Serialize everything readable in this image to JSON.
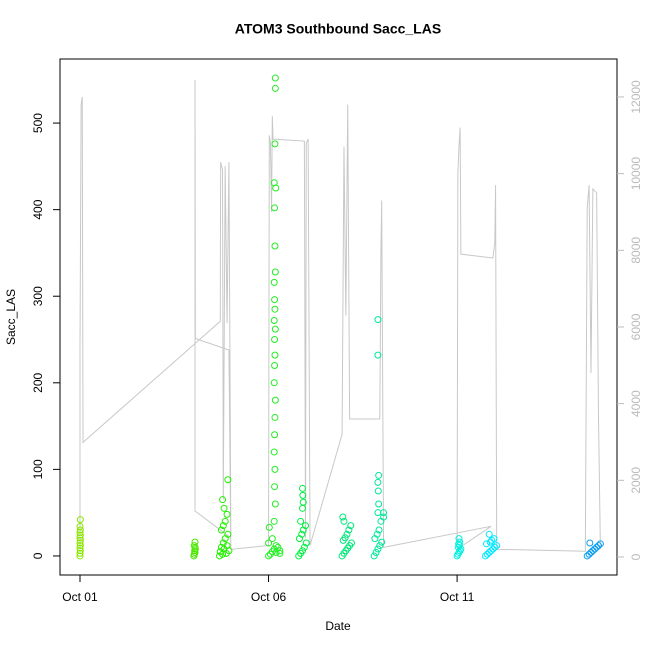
{
  "chart_data": {
    "type": "scatter",
    "title": "ATOM3 Southbound Sacc_LAS",
    "xlabel": "Date",
    "ylabel": "Sacc_LAS",
    "xlim": [
      0.47,
      15.24
    ],
    "ylim": [
      -22,
      574
    ],
    "y2lim": [
      -470,
      12990
    ],
    "xticks": [
      {
        "value": 1,
        "label": "Oct 01"
      },
      {
        "value": 6,
        "label": "Oct 06"
      },
      {
        "value": 11,
        "label": "Oct 11"
      }
    ],
    "yticks": [
      0,
      100,
      200,
      300,
      400,
      500
    ],
    "y2ticks": [
      0,
      2000,
      4000,
      6000,
      8000,
      10000,
      12000
    ],
    "series": [
      {
        "type": "line",
        "axis": "y2",
        "color": "#c8c8c8",
        "x": [
          1,
          1,
          1.03,
          1.06,
          1.08,
          4.72,
          4.73,
          4.78,
          4.8,
          4.85,
          4.9,
          4.95,
          5,
          4.05,
          4.05,
          4.06,
          4.95,
          5,
          6,
          6.02,
          6.05,
          6.08,
          6.1,
          6.12,
          6.95,
          6.98,
          7,
          7.05,
          7.1,
          7.95,
          8,
          8.05,
          8.1,
          8.15,
          8.95,
          8.98,
          9,
          9.05,
          11.9,
          11,
          11.02,
          11.05,
          11.08,
          11.1,
          11.95,
          12,
          12.02,
          12.05,
          14.4,
          14.45,
          14.5,
          14.55,
          14.6,
          14.7,
          14.75,
          14.8
        ],
        "values": [
          200,
          5400,
          11800,
          12000,
          2990,
          6150,
          10300,
          10100,
          1500,
          10200,
          6100,
          10300,
          500,
          1200,
          12450,
          5700,
          5400,
          200,
          300,
          11000,
          10800,
          9000,
          11500,
          10900,
          10850,
          500,
          10800,
          10900,
          300,
          3200,
          10700,
          6300,
          11800,
          3600,
          3600,
          8000,
          9300,
          250,
          800,
          200,
          10000,
          10700,
          11200,
          7900,
          7800,
          8200,
          9700,
          200,
          150,
          9100,
          9700,
          4800,
          9600,
          9500,
          3600,
          200
        ]
      },
      {
        "color": "#8ce600",
        "x": [
          1,
          1,
          1.01,
          1,
          1.01,
          1,
          1.01,
          1,
          1.01,
          1,
          1.01,
          1,
          1.01
        ],
        "values": [
          0,
          3,
          6,
          9,
          12,
          15,
          18,
          21,
          24,
          27,
          30,
          34,
          42
        ]
      },
      {
        "color": "#4ce600",
        "x": [
          4.02,
          4.03,
          4.05,
          4.04,
          4.06,
          4.05,
          4.03,
          4.05
        ],
        "values": [
          0,
          2,
          4,
          6,
          8,
          10,
          12,
          16
        ]
      },
      {
        "color": "#22f000",
        "x": [
          4.7,
          4.72,
          4.75,
          4.78,
          4.8,
          4.82,
          4.85,
          4.88,
          4.9,
          4.92,
          4.95,
          4.75,
          4.8,
          4.85,
          4.9,
          4.82,
          4.78,
          4.92
        ],
        "values": [
          0,
          5,
          10,
          2,
          15,
          8,
          20,
          3,
          12,
          25,
          6,
          30,
          35,
          40,
          48,
          55,
          65,
          88
        ]
      },
      {
        "color": "#22ee22",
        "x": [
          6,
          6.05,
          6.1,
          6.15,
          6.2,
          6.25,
          6.3,
          6,
          6.1,
          6.2,
          6.3,
          6.02,
          6.15,
          6.18,
          6.16,
          6.17,
          6.15,
          6.16,
          6.17,
          6.18,
          6.15,
          6.16,
          6.17,
          6.16,
          6.18,
          6.15,
          6.17,
          6.16,
          6.15,
          6.18,
          6.17,
          6.16,
          6.19,
          6.15,
          6.17,
          6.18,
          6.18
        ],
        "values": [
          0,
          2,
          5,
          8,
          4,
          10,
          3,
          15,
          20,
          12,
          6,
          33,
          40,
          60,
          80,
          100,
          120,
          140,
          160,
          180,
          200,
          220,
          232,
          250,
          262,
          272,
          285,
          296,
          316,
          328,
          358,
          402,
          425,
          431,
          476,
          540,
          552
        ]
      },
      {
        "color": "#00f040",
        "x": [
          6.8,
          6.85,
          6.9,
          6.95,
          7,
          6.82,
          6.88,
          6.92,
          6.98,
          6.85,
          6.9,
          6.92,
          6.91,
          6.9
        ],
        "values": [
          0,
          3,
          6,
          10,
          15,
          20,
          25,
          30,
          35,
          40,
          55,
          62,
          70,
          78
        ]
      },
      {
        "color": "#00e87a",
        "x": [
          7.95,
          8,
          8.05,
          8.1,
          8.15,
          8.2,
          7.98,
          8.03,
          8.08,
          8.13,
          8.18,
          8,
          7.97
        ],
        "values": [
          0,
          3,
          6,
          9,
          12,
          15,
          18,
          21,
          25,
          30,
          35,
          40,
          45
        ]
      },
      {
        "color": "#00e89a",
        "x": [
          8.8,
          8.85,
          8.9,
          8.95,
          9,
          8.82,
          8.88,
          8.93,
          8.98,
          8.9,
          8.92,
          8.91,
          8.9,
          8.92,
          8.9,
          8.9,
          9.05,
          9.05
        ],
        "values": [
          0,
          4,
          8,
          12,
          16,
          20,
          25,
          30,
          40,
          50,
          60,
          75,
          85,
          93,
          232,
          273,
          45,
          50
        ]
      },
      {
        "color": "#00f0e0",
        "x": [
          11,
          11.02,
          11.05,
          11.08,
          11.1,
          11.03,
          11.06,
          11.04,
          11.07,
          11.05
        ],
        "values": [
          0,
          2,
          4,
          6,
          8,
          10,
          12,
          14,
          16,
          20
        ]
      },
      {
        "color": "#00e8ff",
        "x": [
          11.75,
          11.8,
          11.85,
          11.9,
          11.95,
          12,
          12.05,
          11.78,
          11.88,
          11.92,
          11.98,
          11.85
        ],
        "values": [
          0,
          2,
          4,
          6,
          8,
          10,
          12,
          14,
          16,
          18,
          20,
          25
        ]
      },
      {
        "color": "#0a9ef0",
        "x": [
          14.45,
          14.5,
          14.55,
          14.6,
          14.65,
          14.7,
          14.75,
          14.8,
          14.52
        ],
        "values": [
          0,
          2,
          4,
          6,
          8,
          10,
          12,
          14,
          15
        ]
      }
    ]
  }
}
